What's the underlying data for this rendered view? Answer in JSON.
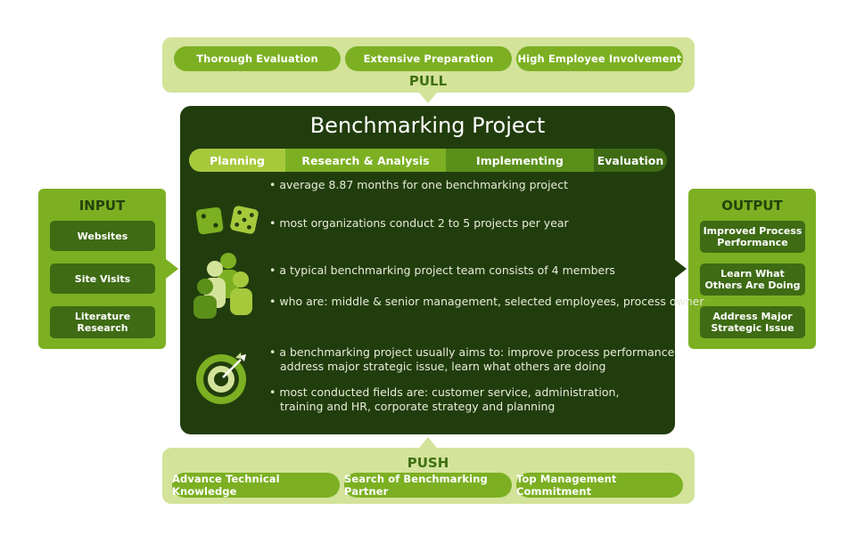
{
  "pull": {
    "title": "PULL",
    "items": [
      "Thorough Evaluation",
      "Extensive Preparation",
      "High Employee Involvement"
    ]
  },
  "push": {
    "title": "PUSH",
    "items": [
      "Advance Technical Knowledge",
      "Search of Benchmarking Partner",
      "Top Management Commitment"
    ]
  },
  "main": {
    "title": "Benchmarking Project",
    "phases": [
      "Planning",
      "Research & Analysis",
      "Implementing",
      "Evaluation"
    ],
    "bullets": [
      "average 8.87 months for one benchmarking project",
      "most organizations conduct 2 to 5 projects per year",
      "a typical benchmarking project team consists of 4 members",
      "who are: middle & senior management, selected employees, process owner",
      "a benchmarking project usually aims to: improve process performance,",
      "address major strategic issue, learn what others are doing",
      "most conducted fields are: customer service, administration,",
      "training and HR, corporate strategy and planning"
    ]
  },
  "input": {
    "title": "INPUT",
    "items": [
      "Websites",
      "Site Visits",
      "Literature\nResearch"
    ]
  },
  "output": {
    "title": "OUTPUT",
    "items": [
      "Improved Process\nPerformance",
      "Learn What\nOthers Are Doing",
      "Address Major\nStrategic Issue"
    ]
  },
  "colors": {
    "dark_green": "#223d0d",
    "mid_green": "#7cb022",
    "light_green": "#d3e39a",
    "planning": "#a6c93c",
    "research": "#7cb022",
    "implementing": "#5a8f1a",
    "evaluation": "#3e6b14"
  },
  "icons": [
    "dice-icon",
    "team-icon",
    "target-icon"
  ]
}
